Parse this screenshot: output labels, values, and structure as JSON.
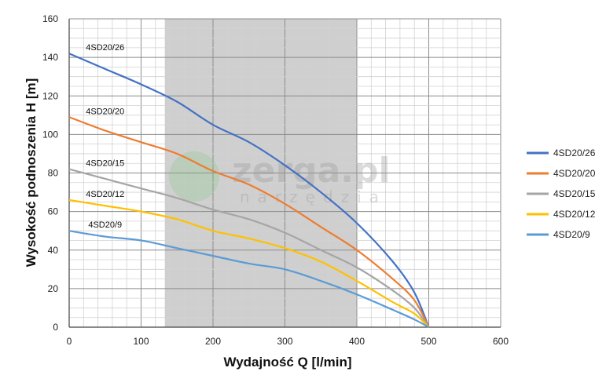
{
  "chart_data": {
    "type": "line",
    "xlabel": "Wydajność Q [l/min]",
    "ylabel": "Wysokość podnoszenia H [m]",
    "xlim": [
      0,
      600
    ],
    "ylim": [
      0,
      160
    ],
    "xticks": [
      "0",
      "100",
      "200",
      "300",
      "400",
      "500",
      "600"
    ],
    "yticks": [
      "0",
      "20",
      "40",
      "60",
      "80",
      "100",
      "120",
      "140",
      "160"
    ],
    "grid": true,
    "legend_position": "right",
    "highlight_band": {
      "x_from": 133,
      "x_to": 400,
      "color": "#cfcfcf"
    },
    "watermark": {
      "main": "zerga.pl",
      "sub": "narzędzia"
    },
    "series": [
      {
        "name": "4SD20/26",
        "color": "#4472c4",
        "x": [
          0,
          50,
          100,
          150,
          200,
          250,
          300,
          350,
          400,
          450,
          480,
          500
        ],
        "y": [
          142,
          134,
          126,
          117,
          105,
          96,
          84,
          70,
          54,
          34,
          18,
          0
        ]
      },
      {
        "name": "4SD20/20",
        "color": "#ed7d31",
        "x": [
          0,
          50,
          100,
          150,
          200,
          250,
          300,
          350,
          400,
          450,
          480,
          500
        ],
        "y": [
          109,
          102,
          96,
          90,
          81,
          74,
          64,
          52,
          40,
          25,
          14,
          0
        ]
      },
      {
        "name": "4SD20/15",
        "color": "#a5a5a5",
        "x": [
          0,
          50,
          100,
          150,
          200,
          250,
          300,
          350,
          400,
          450,
          480,
          500
        ],
        "y": [
          82,
          77,
          72,
          67,
          61,
          56,
          49,
          40,
          31,
          19,
          10,
          0
        ]
      },
      {
        "name": "4SD20/12",
        "color": "#ffc000",
        "x": [
          0,
          50,
          100,
          150,
          200,
          250,
          300,
          350,
          400,
          450,
          480,
          500
        ],
        "y": [
          66,
          63,
          60,
          56,
          50,
          46,
          41,
          34,
          24,
          13,
          7,
          0
        ]
      },
      {
        "name": "4SD20/9",
        "color": "#5b9bd5",
        "x": [
          0,
          50,
          100,
          150,
          200,
          250,
          300,
          350,
          400,
          450,
          480,
          500
        ],
        "y": [
          50,
          47,
          45,
          41,
          37,
          33,
          30,
          24,
          17,
          9,
          4,
          0
        ]
      }
    ]
  }
}
